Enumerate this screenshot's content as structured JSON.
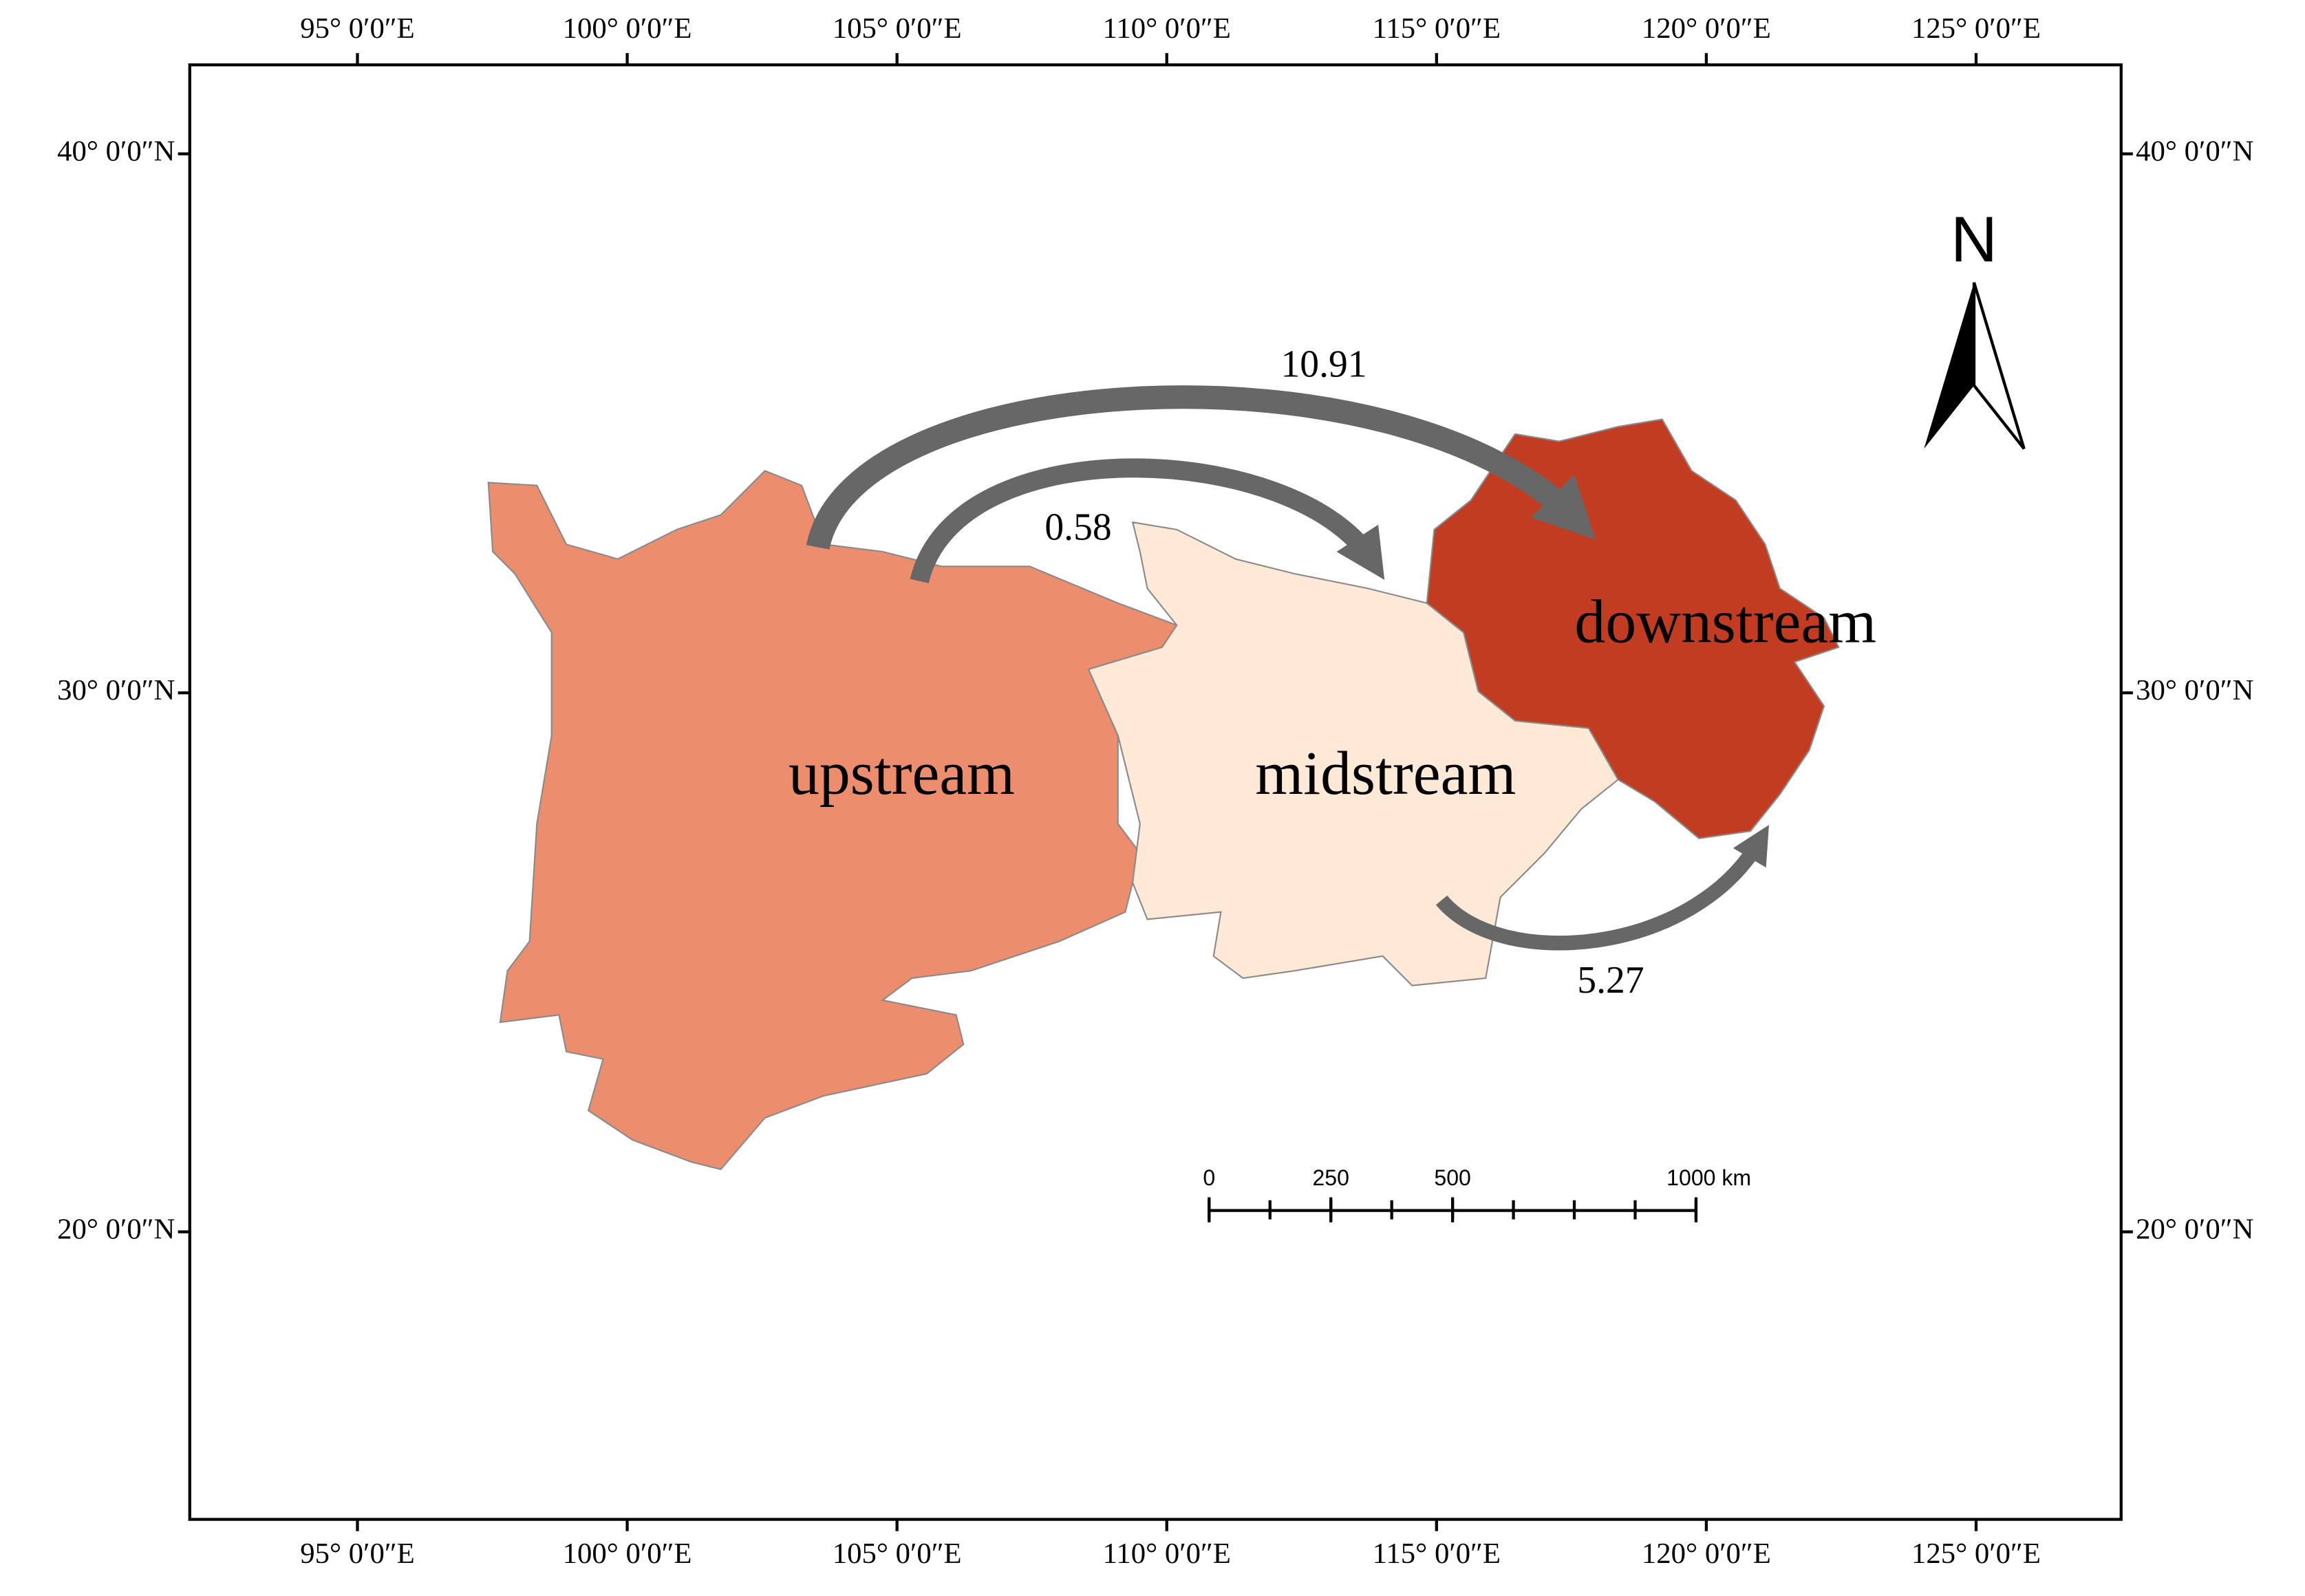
{
  "lon_ticks": [
    {
      "value": 95,
      "label": "95° 0′0″E"
    },
    {
      "value": 100,
      "label": "100° 0′0″E"
    },
    {
      "value": 105,
      "label": "105° 0′0″E"
    },
    {
      "value": 110,
      "label": "110° 0′0″E"
    },
    {
      "value": 115,
      "label": "115° 0′0″E"
    },
    {
      "value": 120,
      "label": "120° 0′0″E"
    },
    {
      "value": 125,
      "label": "125° 0′0″E"
    }
  ],
  "lat_ticks": [
    {
      "value": 40,
      "label": "40° 0′0″N"
    },
    {
      "value": 30,
      "label": "30° 0′0″N"
    },
    {
      "value": 20,
      "label": "20° 0′0″N"
    }
  ],
  "regions": {
    "upstream": "upstream",
    "midstream": "midstream",
    "downstream": "downstream"
  },
  "flows": {
    "up_to_down": 10.91,
    "up_to_mid": 0.58,
    "mid_to_down": 5.27
  },
  "north": "N",
  "scale_bar": [
    0,
    250,
    500,
    {
      "value": 1000,
      "label": "1000 km"
    }
  ]
}
